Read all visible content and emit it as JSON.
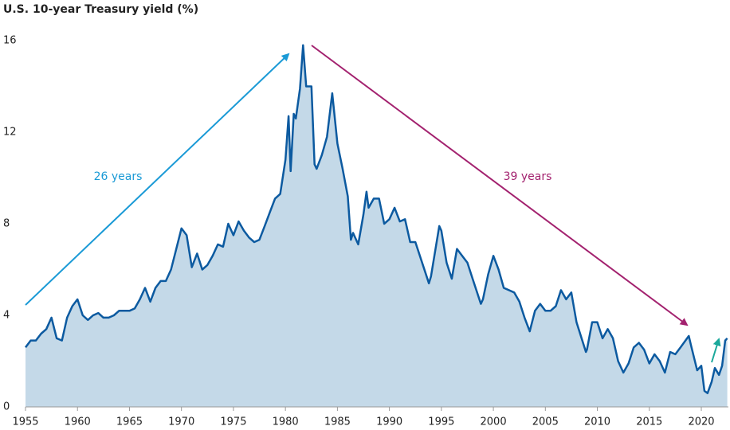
{
  "chart_data": {
    "type": "area",
    "title": "U.S. 10-year Treasury yield (%)",
    "annotations": [
      {
        "text": "26 years",
        "color": "#1a9ad6"
      },
      {
        "text": "39 years",
        "color": "#a3226f"
      }
    ],
    "x": [
      1955,
      1955.5,
      1956,
      1956.5,
      1957,
      1957.5,
      1958,
      1958.5,
      1959,
      1959.5,
      1960,
      1960.5,
      1961,
      1961.5,
      1962,
      1962.5,
      1963,
      1963.5,
      1964,
      1964.5,
      1965,
      1965.5,
      1966,
      1966.5,
      1967,
      1967.5,
      1968,
      1968.5,
      1969,
      1969.5,
      1970,
      1970.5,
      1971,
      1971.5,
      1972,
      1972.5,
      1973,
      1973.5,
      1974,
      1974.5,
      1975,
      1975.5,
      1976,
      1976.5,
      1977,
      1977.5,
      1978,
      1978.5,
      1979,
      1979.5,
      1980,
      1980.3,
      1980.5,
      1980.8,
      1981,
      1981.4,
      1981.7,
      1982,
      1982.5,
      1982.8,
      1983,
      1983.5,
      1984,
      1984.5,
      1985,
      1985.5,
      1986,
      1986.3,
      1986.5,
      1987,
      1987.5,
      1987.8,
      1988,
      1988.5,
      1989,
      1989.5,
      1990,
      1990.5,
      1991,
      1991.5,
      1992,
      1992.5,
      1993,
      1993.8,
      1994,
      1994.8,
      1995,
      1995.5,
      1996,
      1996.5,
      1997,
      1997.5,
      1998,
      1998.8,
      1999,
      1999.5,
      2000,
      2000.5,
      2001,
      2001.5,
      2002,
      2002.5,
      2003,
      2003.5,
      2004,
      2004.5,
      2005,
      2005.5,
      2006,
      2006.5,
      2007,
      2007.5,
      2008,
      2008.9,
      2009,
      2009.5,
      2010,
      2010.5,
      2011,
      2011.5,
      2012,
      2012.5,
      2013,
      2013.5,
      2014,
      2014.5,
      2015,
      2015.5,
      2016,
      2016.5,
      2017,
      2017.5,
      2018,
      2018.8,
      2019,
      2019.6,
      2020,
      2020.3,
      2020.6,
      2021,
      2021.3,
      2021.7,
      2022,
      2022.3,
      2022.5
    ],
    "series": [
      {
        "name": "U.S. 10-year Treasury yield",
        "color": "#0c5aa0",
        "fill": "#c4d9e8",
        "values": [
          2.6,
          2.9,
          2.9,
          3.2,
          3.4,
          3.9,
          3.0,
          2.9,
          3.9,
          4.4,
          4.7,
          4.0,
          3.8,
          4.0,
          4.1,
          3.9,
          3.9,
          4.0,
          4.2,
          4.2,
          4.2,
          4.3,
          4.7,
          5.2,
          4.6,
          5.2,
          5.5,
          5.5,
          6.0,
          6.9,
          7.8,
          7.5,
          6.1,
          6.7,
          6.0,
          6.2,
          6.6,
          7.1,
          7.0,
          8.0,
          7.5,
          8.1,
          7.7,
          7.4,
          7.2,
          7.3,
          7.9,
          8.5,
          9.1,
          9.3,
          10.8,
          12.7,
          10.3,
          12.8,
          12.6,
          13.9,
          15.8,
          14.0,
          14.0,
          10.6,
          10.4,
          11.0,
          11.8,
          13.7,
          11.5,
          10.4,
          9.2,
          7.3,
          7.6,
          7.1,
          8.4,
          9.4,
          8.7,
          9.1,
          9.1,
          8.0,
          8.2,
          8.7,
          8.1,
          8.2,
          7.2,
          7.2,
          6.5,
          5.4,
          5.7,
          7.9,
          7.7,
          6.3,
          5.6,
          6.9,
          6.6,
          6.3,
          5.6,
          4.5,
          4.7,
          5.8,
          6.6,
          6.0,
          5.2,
          5.1,
          5.0,
          4.6,
          3.9,
          3.3,
          4.2,
          4.5,
          4.2,
          4.2,
          4.4,
          5.1,
          4.7,
          5.0,
          3.7,
          2.4,
          2.5,
          3.7,
          3.7,
          3.0,
          3.4,
          3.0,
          2.0,
          1.5,
          1.9,
          2.6,
          2.8,
          2.5,
          1.9,
          2.3,
          2.0,
          1.5,
          2.4,
          2.3,
          2.6,
          3.1,
          2.7,
          1.6,
          1.8,
          0.7,
          0.6,
          1.1,
          1.7,
          1.4,
          1.8,
          2.9,
          3.0
        ]
      }
    ],
    "xlim": [
      1955,
      2022.6
    ],
    "xticks": [
      1955,
      1960,
      1965,
      1970,
      1975,
      1980,
      1985,
      1990,
      1995,
      2000,
      2005,
      2010,
      2015,
      2020
    ],
    "ylim": [
      0,
      16
    ],
    "yticks": [
      0,
      4,
      8,
      12,
      16
    ],
    "grid": false
  }
}
